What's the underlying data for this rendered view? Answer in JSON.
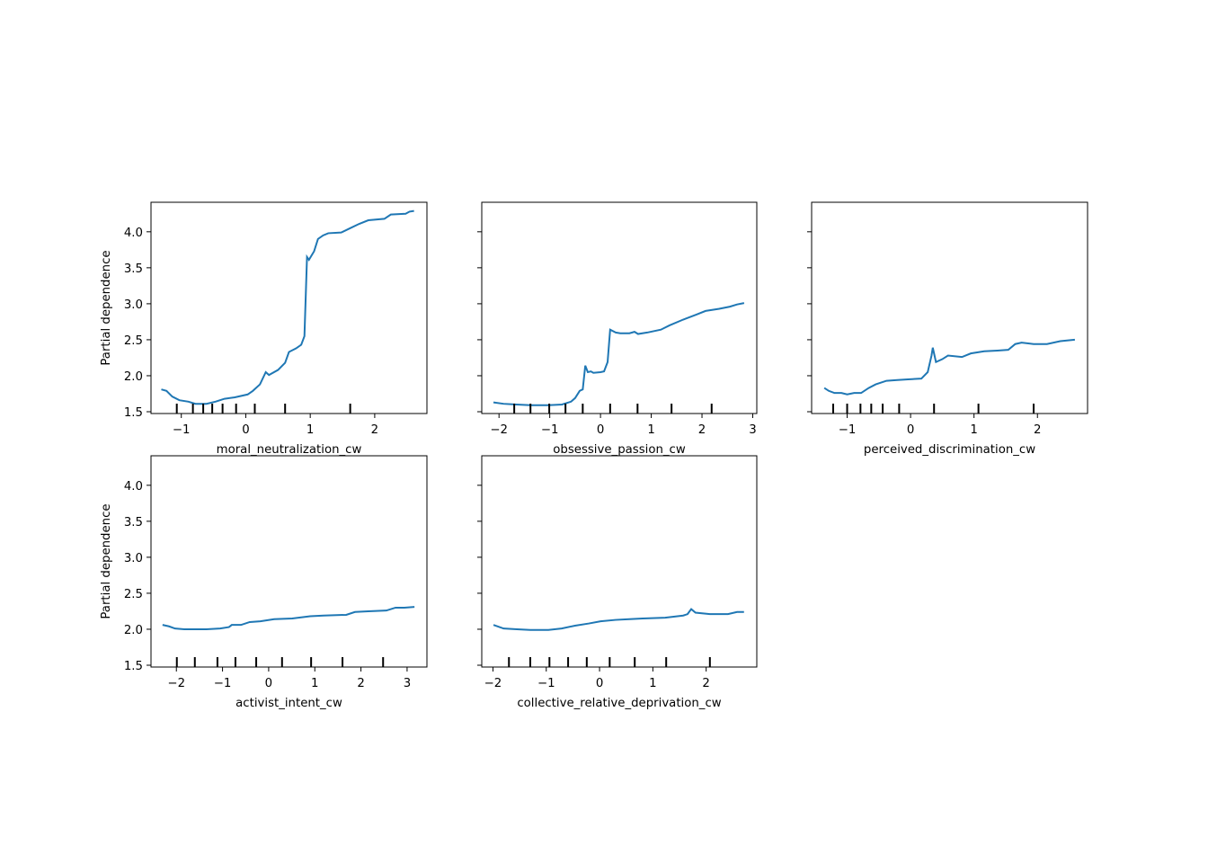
{
  "chart_data": [
    {
      "type": "line",
      "xlabel": "moral_neutralization_cw",
      "ylabel": "Partial dependence",
      "color": "#1f77b4",
      "x": [
        -1.31,
        -1.23,
        -1.14,
        -1.03,
        -0.89,
        -0.78,
        -0.61,
        -0.47,
        -0.33,
        -0.17,
        0.03,
        0.11,
        0.22,
        0.31,
        0.36,
        0.5,
        0.61,
        0.67,
        0.78,
        0.86,
        0.91,
        0.95,
        0.98,
        1.06,
        1.12,
        1.2,
        1.28,
        1.48,
        1.62,
        1.76,
        1.9,
        2.15,
        2.25,
        2.48,
        2.54,
        2.61
      ],
      "values": [
        1.81,
        1.79,
        1.71,
        1.66,
        1.64,
        1.61,
        1.61,
        1.64,
        1.68,
        1.7,
        1.74,
        1.79,
        1.88,
        2.05,
        2.01,
        2.08,
        2.18,
        2.33,
        2.38,
        2.43,
        2.55,
        3.65,
        3.61,
        3.73,
        3.9,
        3.95,
        3.98,
        3.99,
        4.05,
        4.11,
        4.16,
        4.18,
        4.24,
        4.25,
        4.28,
        4.29
      ],
      "deciles": [
        -1.07,
        -0.82,
        -0.66,
        -0.52,
        -0.36,
        -0.15,
        0.14,
        0.61,
        1.62
      ],
      "xlim": [
        -1.47,
        2.81
      ],
      "ylim": [
        1.475,
        4.41
      ],
      "xticks": [
        {
          "value": -1,
          "label": "−1"
        },
        0,
        1,
        2
      ],
      "yticks": [
        1.5,
        {
          "value": 2,
          "label": "2.0"
        },
        2.5,
        {
          "value": 3,
          "label": "3.0"
        },
        3.5,
        {
          "value": 4,
          "label": "4.0"
        }
      ]
    },
    {
      "type": "line",
      "xlabel": "obsessive_passion_cw",
      "color": "#1f77b4",
      "x": [
        -2.11,
        -1.91,
        -1.65,
        -1.38,
        -1.03,
        -0.76,
        -0.58,
        -0.5,
        -0.41,
        -0.35,
        -0.3,
        -0.25,
        -0.19,
        -0.14,
        0,
        0.07,
        0.14,
        0.19,
        0.3,
        0.39,
        0.57,
        0.67,
        0.74,
        0.92,
        1.19,
        1.36,
        1.63,
        1.89,
        2.07,
        2.34,
        2.55,
        2.69,
        2.83
      ],
      "values": [
        1.63,
        1.61,
        1.6,
        1.59,
        1.59,
        1.6,
        1.64,
        1.69,
        1.79,
        1.81,
        2.14,
        2.05,
        2.06,
        2.04,
        2.05,
        2.06,
        2.19,
        2.64,
        2.6,
        2.59,
        2.59,
        2.61,
        2.58,
        2.6,
        2.64,
        2.7,
        2.78,
        2.85,
        2.9,
        2.93,
        2.96,
        2.99,
        3.01
      ],
      "deciles": [
        -1.7,
        -1.38,
        -1.01,
        -0.69,
        -0.35,
        0.19,
        0.73,
        1.4,
        2.19
      ],
      "xlim": [
        -2.34,
        3.08
      ],
      "ylim": [
        1.475,
        4.41
      ],
      "xticks": [
        {
          "value": -2,
          "label": "−2"
        },
        {
          "value": -1,
          "label": "−1"
        },
        0,
        1,
        2,
        3
      ],
      "yticks": [
        1.5,
        2,
        2.5,
        3,
        3.5,
        4
      ]
    },
    {
      "type": "line",
      "xlabel": "perceived_discrimination_cw",
      "color": "#1f77b4",
      "x": [
        -1.36,
        -1.29,
        -1.2,
        -1.09,
        -1,
        -0.89,
        -0.78,
        -0.66,
        -0.55,
        -0.38,
        -0.21,
        -0.04,
        0.17,
        0.27,
        0.33,
        0.35,
        0.4,
        0.5,
        0.59,
        0.81,
        0.95,
        1.16,
        1.37,
        1.54,
        1.65,
        1.75,
        1.94,
        2.15,
        2.36,
        2.59
      ],
      "values": [
        1.83,
        1.79,
        1.76,
        1.76,
        1.74,
        1.76,
        1.76,
        1.83,
        1.88,
        1.93,
        1.94,
        1.95,
        1.96,
        2.05,
        2.28,
        2.39,
        2.19,
        2.23,
        2.28,
        2.26,
        2.31,
        2.34,
        2.35,
        2.36,
        2.44,
        2.46,
        2.44,
        2.44,
        2.48,
        2.5
      ],
      "deciles": [
        -1.22,
        -1,
        -0.79,
        -0.62,
        -0.44,
        -0.18,
        0.37,
        1.07,
        1.94
      ],
      "xlim": [
        -1.56,
        2.79
      ],
      "ylim": [
        1.475,
        4.41
      ],
      "xticks": [
        {
          "value": -1,
          "label": "−1"
        },
        0,
        1,
        2
      ],
      "yticks": [
        1.5,
        2,
        2.5,
        3,
        3.5,
        4
      ]
    },
    {
      "type": "line",
      "xlabel": "activist_intent_cw",
      "ylabel": "Partial dependence",
      "color": "#1f77b4",
      "x": [
        -2.3,
        -2.16,
        -2.03,
        -1.83,
        -1.35,
        -1.05,
        -0.86,
        -0.8,
        -0.6,
        -0.41,
        -0.18,
        0.12,
        0.51,
        0.9,
        1.19,
        1.68,
        1.87,
        2.16,
        2.55,
        2.75,
        2.94,
        3.16
      ],
      "values": [
        2.06,
        2.04,
        2.01,
        2,
        2,
        2.01,
        2.03,
        2.06,
        2.06,
        2.1,
        2.11,
        2.14,
        2.15,
        2.18,
        2.19,
        2.2,
        2.24,
        2.25,
        2.26,
        2.3,
        2.3,
        2.31
      ],
      "deciles": [
        -1.99,
        -1.6,
        -1.11,
        -0.72,
        -0.27,
        0.29,
        0.92,
        1.6,
        2.48
      ],
      "xlim": [
        -2.55,
        3.43
      ],
      "ylim": [
        1.475,
        4.41
      ],
      "xticks": [
        {
          "value": -2,
          "label": "−2"
        },
        {
          "value": -1,
          "label": "−1"
        },
        0,
        1,
        2,
        3
      ],
      "yticks": [
        1.5,
        {
          "value": 2,
          "label": "2.0"
        },
        2.5,
        {
          "value": 3,
          "label": "3.0"
        },
        3.5,
        {
          "value": 4,
          "label": "4.0"
        }
      ]
    },
    {
      "type": "line",
      "xlabel": "collective_relative_deprivation_cw",
      "color": "#1f77b4",
      "x": [
        -1.99,
        -1.8,
        -1.55,
        -1.3,
        -0.96,
        -0.71,
        -0.46,
        -0.2,
        0.02,
        0.3,
        0.56,
        0.81,
        1.23,
        1.57,
        1.65,
        1.72,
        1.8,
        2.07,
        2.41,
        2.58,
        2.71
      ],
      "values": [
        2.06,
        2.01,
        2,
        1.99,
        1.99,
        2.01,
        2.05,
        2.08,
        2.11,
        2.13,
        2.14,
        2.15,
        2.16,
        2.19,
        2.21,
        2.28,
        2.23,
        2.21,
        2.21,
        2.24,
        2.24
      ],
      "deciles": [
        -1.7,
        -1.3,
        -0.94,
        -0.59,
        -0.24,
        0.19,
        0.66,
        1.25,
        2.07
      ],
      "xlim": [
        -2.21,
        2.95
      ],
      "ylim": [
        1.475,
        4.41
      ],
      "xticks": [
        {
          "value": -2,
          "label": "−2"
        },
        {
          "value": -1,
          "label": "−1"
        },
        0,
        1,
        2
      ],
      "yticks": [
        1.5,
        2,
        2.5,
        3,
        3.5,
        4
      ]
    }
  ]
}
